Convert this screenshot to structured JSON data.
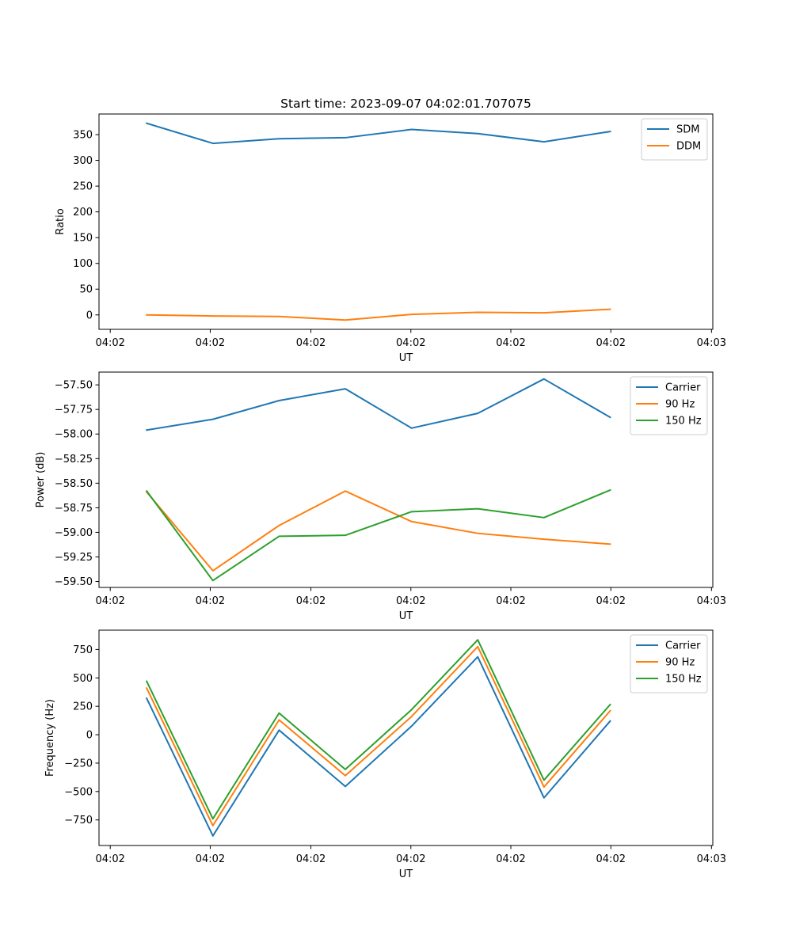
{
  "figure": {
    "title": "Start time: 2023-09-07 04:02:01.707075"
  },
  "chart_data": [
    {
      "type": "line",
      "title": "Start time: 2023-09-07 04:02:01.707075",
      "xlabel": "UT",
      "ylabel": "Ratio",
      "x": [
        1,
        2,
        3,
        4,
        5,
        6,
        7,
        8
      ],
      "xlim": [
        0.28,
        9.55
      ],
      "x_ticks": [
        0.45,
        1.96,
        3.48,
        4.99,
        6.5,
        8.01,
        9.53
      ],
      "x_tick_labels": [
        "04:02",
        "04:02",
        "04:02",
        "04:02",
        "04:02",
        "04:02",
        "04:03"
      ],
      "ylim": [
        -28,
        390
      ],
      "y_ticks": [
        0,
        50,
        100,
        150,
        200,
        250,
        300,
        350
      ],
      "y_tick_labels": [
        "0",
        "50",
        "100",
        "150",
        "200",
        "250",
        "300",
        "350"
      ],
      "legend_position": "top-right",
      "series": [
        {
          "name": "SDM",
          "color": "#1f77b4",
          "values": [
            372,
            333,
            342,
            344,
            360,
            352,
            336,
            356
          ]
        },
        {
          "name": "DDM",
          "color": "#ff7f0e",
          "values": [
            0,
            -2,
            -3,
            -10,
            1,
            5,
            4,
            11
          ]
        }
      ]
    },
    {
      "type": "line",
      "title": "",
      "xlabel": "UT",
      "ylabel": "Power (dB)",
      "x": [
        1,
        2,
        3,
        4,
        5,
        6,
        7,
        8
      ],
      "xlim": [
        0.28,
        9.55
      ],
      "x_ticks": [
        0.45,
        1.96,
        3.48,
        4.99,
        6.5,
        8.01,
        9.53
      ],
      "x_tick_labels": [
        "04:02",
        "04:02",
        "04:02",
        "04:02",
        "04:02",
        "04:02",
        "04:03"
      ],
      "ylim": [
        -59.56,
        -57.37
      ],
      "y_ticks": [
        -57.5,
        -57.75,
        -58.0,
        -58.25,
        -58.5,
        -58.75,
        -59.0,
        -59.25,
        -59.5
      ],
      "y_tick_labels": [
        "−57.50",
        "−57.75",
        "−58.00",
        "−58.25",
        "−58.50",
        "−58.75",
        "−59.00",
        "−59.25",
        "−59.50"
      ],
      "legend_position": "top-right",
      "series": [
        {
          "name": "Carrier",
          "color": "#1f77b4",
          "values": [
            -57.96,
            -57.85,
            -57.66,
            -57.54,
            -57.94,
            -57.79,
            -57.44,
            -57.83
          ]
        },
        {
          "name": "90 Hz",
          "color": "#ff7f0e",
          "values": [
            -58.59,
            -59.39,
            -58.93,
            -58.58,
            -58.89,
            -59.01,
            -59.07,
            -59.12
          ]
        },
        {
          "name": "150 Hz",
          "color": "#2ca02c",
          "values": [
            -58.58,
            -59.49,
            -59.04,
            -59.03,
            -58.79,
            -58.76,
            -58.85,
            -58.57
          ]
        }
      ]
    },
    {
      "type": "line",
      "title": "",
      "xlabel": "UT",
      "ylabel": "Frequency (Hz)",
      "x": [
        1,
        2,
        3,
        4,
        5,
        6,
        7,
        8
      ],
      "xlim": [
        0.28,
        9.55
      ],
      "x_ticks": [
        0.45,
        1.96,
        3.48,
        4.99,
        6.5,
        8.01,
        9.53
      ],
      "x_tick_labels": [
        "04:02",
        "04:02",
        "04:02",
        "04:02",
        "04:02",
        "04:02",
        "04:03"
      ],
      "ylim": [
        -975,
        920
      ],
      "y_ticks": [
        750,
        500,
        250,
        0,
        -250,
        -500,
        -750
      ],
      "y_tick_labels": [
        "750",
        "500",
        "250",
        "0",
        "−250",
        "−500",
        "−750"
      ],
      "legend_position": "top-right",
      "series": [
        {
          "name": "Carrier",
          "color": "#1f77b4",
          "values": [
            320,
            -890,
            40,
            -455,
            75,
            685,
            -555,
            120
          ]
        },
        {
          "name": "90 Hz",
          "color": "#ff7f0e",
          "values": [
            410,
            -800,
            130,
            -360,
            160,
            775,
            -460,
            210
          ]
        },
        {
          "name": "150 Hz",
          "color": "#2ca02c",
          "values": [
            470,
            -740,
            190,
            -305,
            220,
            835,
            -400,
            265
          ]
        }
      ]
    }
  ]
}
